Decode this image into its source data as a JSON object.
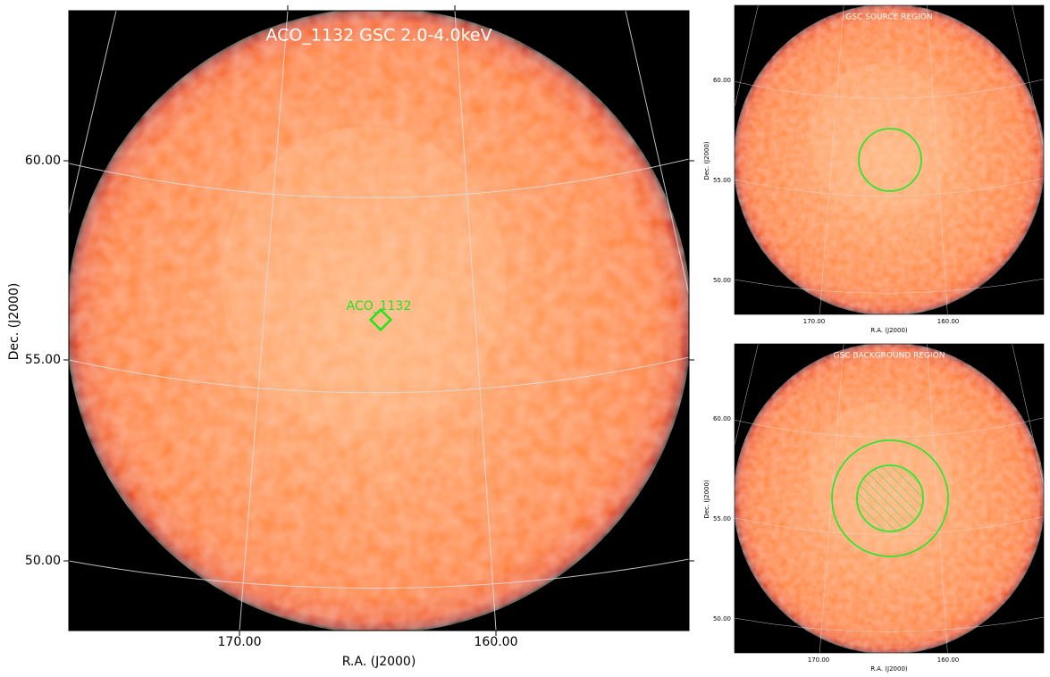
{
  "main": {
    "title": "ACO_1132 GSC 2.0-4.0keV",
    "source_label": "ACO_1132",
    "yticks": [
      "60.00",
      "55.00",
      "50.00"
    ],
    "xticks": [
      "170.00",
      "160.00"
    ],
    "xlabel": "R.A. (J2000)",
    "ylabel": "Dec. (J2000)"
  },
  "source_panel": {
    "title": "GSC SOURCE REGION",
    "yticks": [
      "60.00",
      "55.00",
      "50.00"
    ],
    "xticks": [
      "170.00",
      "160.00"
    ],
    "xlabel": "R.A. (J2000)",
    "ylabel": "Dec. (J2000)"
  },
  "background_panel": {
    "title": "GSC BACKGROUND REGION",
    "yticks": [
      "60.00",
      "55.00",
      "50.00"
    ],
    "xticks": [
      "170.00",
      "160.00"
    ],
    "xlabel": "R.A. (J2000)",
    "ylabel": "Dec. (J2000)"
  }
}
